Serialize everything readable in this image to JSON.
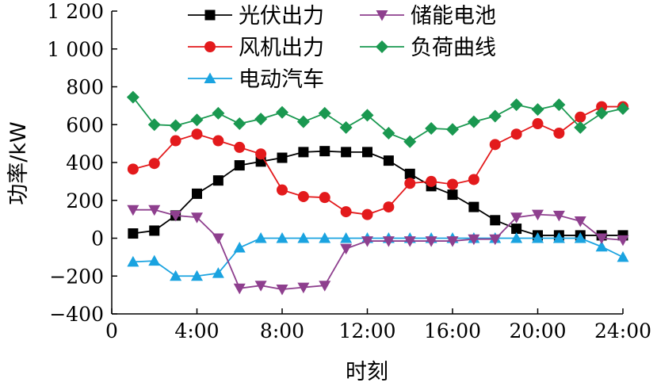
{
  "chart_data": {
    "type": "line",
    "xlabel": "时刻",
    "ylabel": "功率/kW",
    "xlim": [
      0,
      24
    ],
    "ylim": [
      -400,
      1200
    ],
    "x_ticks": [
      {
        "value": 0,
        "label": "0"
      },
      {
        "value": 4,
        "label": "4:00"
      },
      {
        "value": 8,
        "label": "8:00"
      },
      {
        "value": 12,
        "label": "12:00"
      },
      {
        "value": 16,
        "label": "16:00"
      },
      {
        "value": 20,
        "label": "20:00"
      },
      {
        "value": 24,
        "label": "24:00"
      }
    ],
    "y_ticks": [
      {
        "value": -400,
        "label": "−400"
      },
      {
        "value": -200,
        "label": "−200"
      },
      {
        "value": 0,
        "label": "0"
      },
      {
        "value": 200,
        "label": "200"
      },
      {
        "value": 400,
        "label": "400"
      },
      {
        "value": 600,
        "label": "600"
      },
      {
        "value": 800,
        "label": "800"
      },
      {
        "value": 1000,
        "label": "1 000"
      },
      {
        "value": 1200,
        "label": "1 200"
      }
    ],
    "grid": false,
    "legend": "top",
    "x": [
      1,
      2,
      3,
      4,
      5,
      6,
      7,
      8,
      9,
      10,
      11,
      12,
      13,
      14,
      15,
      16,
      17,
      18,
      19,
      20,
      21,
      22,
      23,
      24
    ],
    "series": [
      {
        "name": "光伏出力",
        "color": "#000000",
        "marker": "square",
        "values": [
          25,
          40,
          120,
          235,
          305,
          385,
          405,
          425,
          455,
          460,
          455,
          455,
          410,
          340,
          275,
          230,
          165,
          95,
          50,
          15,
          15,
          15,
          15,
          15
        ]
      },
      {
        "name": "风机出力",
        "color": "#e31a1c",
        "marker": "circle",
        "values": [
          365,
          395,
          515,
          550,
          515,
          480,
          445,
          255,
          220,
          215,
          140,
          125,
          165,
          290,
          300,
          285,
          310,
          495,
          550,
          605,
          555,
          640,
          695,
          695
        ]
      },
      {
        "name": "电动汽车",
        "color": "#1aa3e0",
        "marker": "triangle-up",
        "values": [
          -125,
          -120,
          -200,
          -200,
          -185,
          -50,
          0,
          0,
          0,
          0,
          0,
          0,
          0,
          0,
          0,
          0,
          0,
          0,
          0,
          0,
          0,
          0,
          -45,
          -100
        ]
      },
      {
        "name": "储能电池",
        "color": "#8e3f8e",
        "marker": "triangle-down",
        "values": [
          150,
          150,
          120,
          110,
          0,
          -265,
          -250,
          -270,
          -260,
          -250,
          -55,
          -15,
          -15,
          -15,
          -15,
          -15,
          -5,
          -5,
          110,
          125,
          120,
          90,
          0,
          -10
        ]
      },
      {
        "name": "负荷曲线",
        "color": "#1a9850",
        "marker": "diamond",
        "values": [
          745,
          600,
          595,
          625,
          660,
          605,
          630,
          665,
          615,
          660,
          585,
          650,
          555,
          510,
          580,
          575,
          615,
          645,
          705,
          680,
          705,
          585,
          660,
          685
        ]
      }
    ]
  }
}
